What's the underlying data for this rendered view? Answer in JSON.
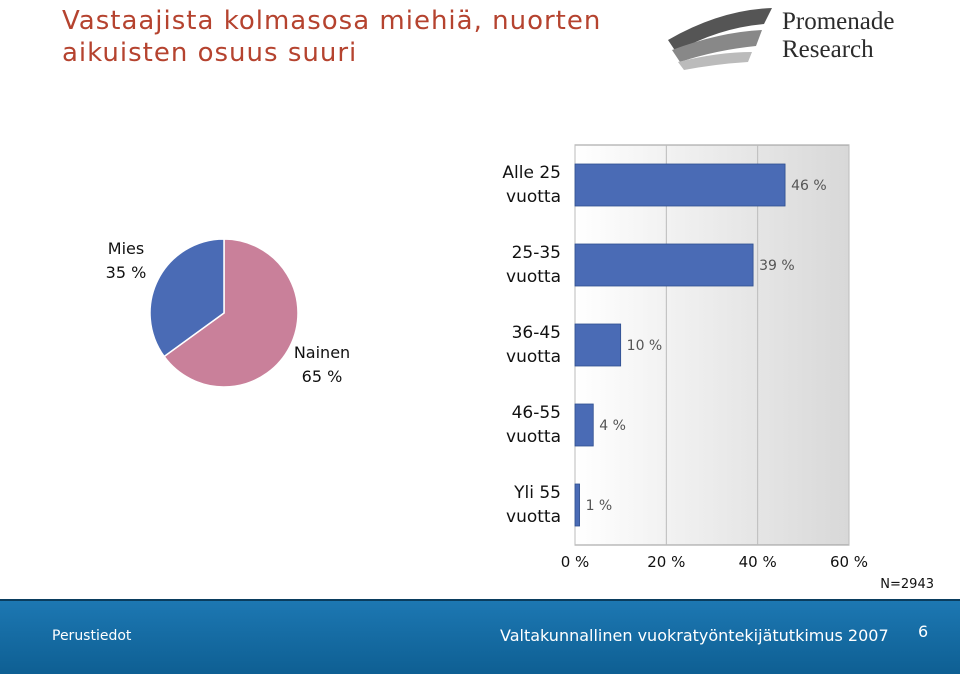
{
  "slide": {
    "title": [
      "Vastaajista kolmasosa miehiä, nuorten",
      "aikuisten osuus suuri"
    ],
    "logo": [
      "Promenade",
      "Research"
    ],
    "footer_left": "Perustiedot",
    "footer_center": "Valtakunnallinen vuokratyöntekijätutkimus 2007",
    "page_number": 6
  },
  "chart_data": [
    {
      "type": "pie",
      "categories": [
        "Mies",
        "Nainen"
      ],
      "values": [
        35,
        65
      ],
      "value_labels": [
        "35 %",
        "65 %"
      ],
      "colors": [
        "#4a6bb5",
        "#c9809a"
      ]
    },
    {
      "type": "hbar",
      "categories": [
        "Alle 25 vuotta",
        "25-35 vuotta",
        "36-45 vuotta",
        "46-55 vuotta",
        "Yli 55 vuotta"
      ],
      "values": [
        46,
        39,
        10,
        4,
        1
      ],
      "value_labels": [
        "46 %",
        "39 %",
        "10 %",
        "4 %",
        "1 %"
      ],
      "color": "#4a6bb5",
      "xlim": [
        0,
        60
      ],
      "xticks": [
        {
          "value": 0,
          "label": "0 %"
        },
        {
          "value": 20,
          "label": "20 %"
        },
        {
          "value": 40,
          "label": "40 %"
        },
        {
          "value": 60,
          "label": "60 %"
        }
      ],
      "grid": true,
      "note": "N=2943"
    }
  ]
}
